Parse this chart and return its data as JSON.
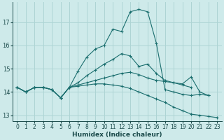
{
  "xlabel": "Humidex (Indice chaleur)",
  "bg_color": "#ceeaea",
  "grid_color": "#add4d4",
  "line_color": "#1a6e6e",
  "xlim": [
    -0.5,
    23.5
  ],
  "ylim": [
    12.75,
    17.85
  ],
  "xticks": [
    0,
    1,
    2,
    3,
    4,
    5,
    6,
    7,
    8,
    9,
    10,
    11,
    12,
    13,
    14,
    15,
    16,
    17,
    18,
    19,
    20,
    21,
    22,
    23
  ],
  "yticks": [
    13,
    14,
    15,
    16,
    17
  ],
  "lines": [
    {
      "x": [
        0,
        1,
        2,
        3,
        4,
        5,
        6,
        7,
        8,
        9,
        10,
        11,
        12,
        13,
        14,
        15,
        16,
        17,
        18,
        19,
        20,
        21,
        22
      ],
      "y": [
        14.2,
        14.0,
        14.2,
        14.2,
        14.1,
        13.75,
        14.2,
        14.9,
        15.5,
        15.85,
        16.0,
        16.7,
        16.6,
        17.45,
        17.55,
        17.45,
        16.1,
        14.1,
        14.0,
        13.9,
        13.85,
        13.9,
        13.85
      ]
    },
    {
      "x": [
        0,
        1,
        2,
        3,
        4,
        5,
        6,
        7,
        8,
        9,
        10,
        11,
        12,
        13,
        14,
        15,
        16,
        17,
        18,
        19,
        20
      ],
      "y": [
        14.2,
        14.0,
        14.2,
        14.2,
        14.1,
        13.75,
        14.2,
        14.4,
        14.7,
        14.95,
        15.2,
        15.4,
        15.65,
        15.55,
        15.1,
        15.2,
        14.8,
        14.5,
        14.4,
        14.3,
        14.2
      ]
    },
    {
      "x": [
        0,
        1,
        2,
        3,
        4,
        5,
        6,
        7,
        8,
        9,
        10,
        11,
        12,
        13,
        14,
        15,
        16,
        17,
        18,
        19,
        20,
        21,
        22
      ],
      "y": [
        14.2,
        14.0,
        14.2,
        14.2,
        14.1,
        13.75,
        14.2,
        14.3,
        14.4,
        14.5,
        14.6,
        14.7,
        14.8,
        14.85,
        14.75,
        14.6,
        14.5,
        14.45,
        14.4,
        14.35,
        14.65,
        14.0,
        13.85
      ]
    },
    {
      "x": [
        0,
        1,
        2,
        3,
        4,
        5,
        6,
        7,
        8,
        9,
        10,
        11,
        12,
        13,
        14,
        15,
        16,
        17,
        18,
        19,
        20,
        21,
        22,
        23
      ],
      "y": [
        14.2,
        14.0,
        14.2,
        14.2,
        14.1,
        13.75,
        14.2,
        14.25,
        14.3,
        14.35,
        14.35,
        14.3,
        14.25,
        14.15,
        14.0,
        13.85,
        13.7,
        13.55,
        13.35,
        13.2,
        13.05,
        13.0,
        12.95,
        12.9
      ]
    }
  ]
}
